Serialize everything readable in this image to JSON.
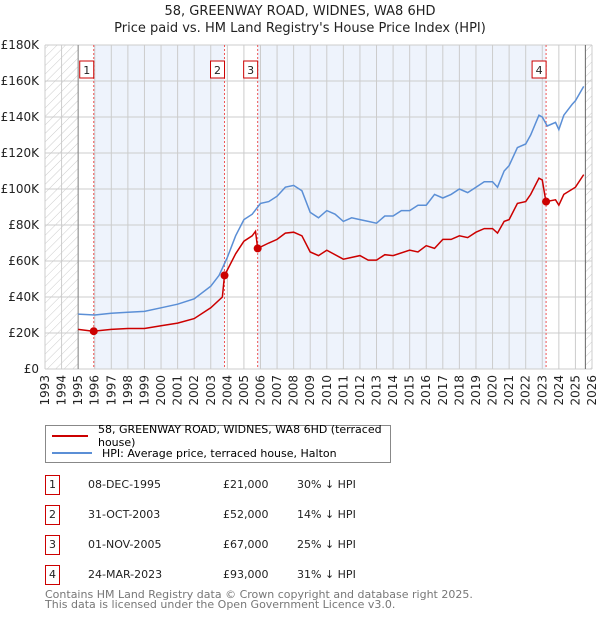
{
  "title": "58, GREENWAY ROAD, WIDNES, WA8 6HD",
  "subtitle": "Price paid vs. HM Land Registry's House Price Index (HPI)",
  "chart_data": {
    "type": "line",
    "xlim": [
      1993,
      2026
    ],
    "ylim": [
      0,
      180000
    ],
    "y_ticks": [
      0,
      20000,
      40000,
      60000,
      80000,
      100000,
      120000,
      140000,
      160000,
      180000
    ],
    "y_tick_labels": [
      "£0",
      "£20K",
      "£40K",
      "£60K",
      "£80K",
      "£100K",
      "£120K",
      "£140K",
      "£160K",
      "£180K"
    ],
    "x_ticks": [
      1993,
      1994,
      1995,
      1996,
      1997,
      1998,
      1999,
      2000,
      2001,
      2002,
      2003,
      2004,
      2005,
      2006,
      2007,
      2008,
      2009,
      2010,
      2011,
      2012,
      2013,
      2014,
      2015,
      2016,
      2017,
      2018,
      2019,
      2020,
      2021,
      2022,
      2023,
      2024,
      2025,
      2026
    ],
    "data_range": [
      1995,
      2025.6
    ],
    "series": [
      {
        "name": "58, GREENWAY ROAD, WIDNES, WA8 6HD (terraced house)",
        "color": "#cc0000",
        "x": [
          1995,
          1995.9,
          1997,
          1998,
          1999,
          2000,
          2001,
          2002,
          2003,
          2003.7,
          2003.83,
          2004,
          2004.5,
          2005,
          2005.5,
          2005.7,
          2005.83,
          2006.5,
          2007,
          2007.5,
          2008,
          2008.5,
          2009,
          2009.5,
          2010,
          2011,
          2012,
          2012.5,
          2013,
          2013.5,
          2014,
          2015,
          2015.5,
          2016,
          2016.5,
          2017,
          2017.5,
          2018,
          2018.5,
          2019,
          2019.5,
          2020,
          2020.3,
          2020.7,
          2021,
          2021.5,
          2022,
          2022.3,
          2022.8,
          2023.0,
          2023.22,
          2023.8,
          2024,
          2024.3,
          2025,
          2025.5
        ],
        "y": [
          22000,
          21000,
          22000,
          22500,
          22500,
          24000,
          25500,
          28000,
          34000,
          40000,
          52000,
          55000,
          64000,
          71000,
          74000,
          76500,
          67000,
          70000,
          72000,
          75500,
          76000,
          74000,
          65000,
          63000,
          66000,
          61000,
          63000,
          60500,
          60500,
          63500,
          63000,
          66000,
          65000,
          68500,
          67000,
          72000,
          72000,
          74000,
          73000,
          76000,
          78000,
          78000,
          75500,
          82000,
          83000,
          92000,
          93000,
          97000,
          106000,
          105000,
          93000,
          94000,
          91000,
          97000,
          101000,
          108000
        ]
      },
      {
        "name": "HPI: Average price, terraced house, Halton",
        "color": "#5b8fd6",
        "x": [
          1995,
          1996,
          1997,
          1998,
          1999,
          2000,
          2001,
          2002,
          2003,
          2003.5,
          2004,
          2004.5,
          2005,
          2005.5,
          2006,
          2006.5,
          2007,
          2007.5,
          2008,
          2008.5,
          2009,
          2009.5,
          2010,
          2010.5,
          2011,
          2011.5,
          2012,
          2012.5,
          2013,
          2013.5,
          2014,
          2014.5,
          2015,
          2015.5,
          2016,
          2016.5,
          2017,
          2017.5,
          2018,
          2018.5,
          2019,
          2019.5,
          2020,
          2020.3,
          2020.7,
          2021,
          2021.5,
          2022,
          2022.3,
          2022.8,
          2023,
          2023.3,
          2023.8,
          2024,
          2024.3,
          2024.8,
          2025,
          2025.5
        ],
        "y": [
          30500,
          30000,
          31000,
          31500,
          32000,
          34000,
          36000,
          39000,
          46000,
          52000,
          62000,
          74000,
          83000,
          86000,
          92000,
          93000,
          96000,
          101000,
          102000,
          99000,
          87000,
          84000,
          88000,
          86000,
          82000,
          84000,
          83000,
          82000,
          81000,
          85000,
          85000,
          88000,
          88000,
          91000,
          91000,
          97000,
          95000,
          97000,
          100000,
          98000,
          101000,
          104000,
          104000,
          101000,
          110000,
          113000,
          123000,
          125000,
          130000,
          141000,
          140000,
          135000,
          137000,
          133000,
          141000,
          147000,
          149000,
          157000
        ]
      }
    ],
    "sales": [
      {
        "label": "1",
        "x": 1995.94,
        "date": "08-DEC-1995",
        "price": 21000,
        "price_label": "£21,000",
        "hpi": "30% ↓ HPI"
      },
      {
        "label": "2",
        "x": 2003.83,
        "date": "31-OCT-2003",
        "price": 52000,
        "price_label": "£52,000",
        "hpi": "14% ↓ HPI"
      },
      {
        "label": "3",
        "x": 2005.83,
        "date": "01-NOV-2005",
        "price": 67000,
        "price_label": "£67,000",
        "hpi": "25% ↓ HPI"
      },
      {
        "label": "4",
        "x": 2023.23,
        "date": "24-MAR-2023",
        "price": 93000,
        "price_label": "£93,000",
        "hpi": "31% ↓ HPI"
      }
    ],
    "legend_position": "bottom"
  },
  "footer1": "Contains HM Land Registry data © Crown copyright and database right 2025.",
  "footer2": "This data is licensed under the Open Government Licence v3.0."
}
